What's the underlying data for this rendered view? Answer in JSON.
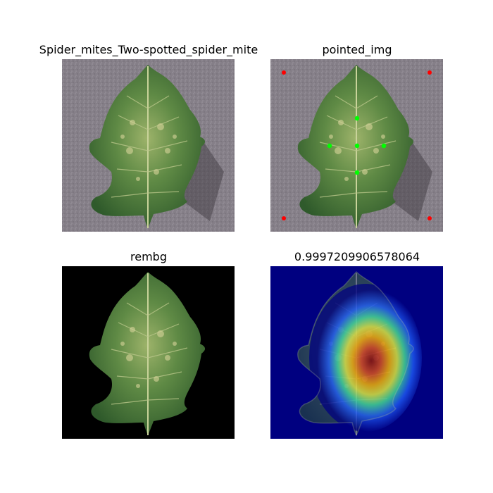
{
  "panels": [
    {
      "id": "original",
      "title": "Spider_mites_Two-spotted_spider_mite",
      "background": "#857f88"
    },
    {
      "id": "pointed",
      "title": "pointed_img",
      "background": "#857f88",
      "corner_marker_color": "#ff0000",
      "point_marker_color": "#00ff00"
    },
    {
      "id": "rembg",
      "title": "rembg",
      "background": "#000000"
    },
    {
      "id": "heatmap",
      "title": "0.9997209906578064",
      "background": "#000080",
      "colormap": "jet"
    }
  ],
  "colors": {
    "leaf_dark": "#2f5a2b",
    "leaf_mid": "#4f7c3e",
    "leaf_light": "#9db36a",
    "vein": "#c9d39a"
  }
}
